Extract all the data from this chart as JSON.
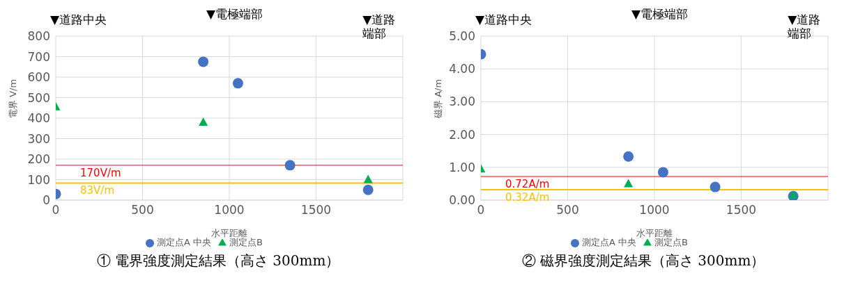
{
  "chart_data": [
    {
      "type": "scatter",
      "title": "① 電界強度測定結果（高さ 300mm）",
      "xlabel": "水平距離",
      "ylabel": "電界 V/m",
      "xlim": [
        0,
        2000
      ],
      "xticks": [
        0,
        500,
        1000,
        1500
      ],
      "ylim": [
        0,
        800
      ],
      "yticks": [
        0,
        100,
        200,
        300,
        400,
        500,
        600,
        700,
        800
      ],
      "series": [
        {
          "name": "測定点A 中央",
          "color": "#4472c4",
          "marker": "circle",
          "x": [
            0,
            850,
            1050,
            1350,
            1800
          ],
          "values": [
            30,
            675,
            570,
            170,
            50
          ]
        },
        {
          "name": "測定点B",
          "color": "#00b050",
          "marker": "triangle",
          "x": [
            0,
            850,
            1800
          ],
          "values": [
            455,
            380,
            100
          ]
        }
      ],
      "ref_lines": [
        {
          "axis": "y",
          "value": 170,
          "label": "170V/m",
          "color": "#ff0000"
        },
        {
          "axis": "y",
          "value": 83,
          "label": "83V/m",
          "color": "#ffc000"
        }
      ],
      "annotations": [
        "▼道路中央",
        "▼電極端部",
        "▼道路端部"
      ],
      "grid": true,
      "legend": "bottom"
    },
    {
      "type": "scatter",
      "title": "② 磁界強度測定結果（高さ 300mm）",
      "xlabel": "水平距離",
      "ylabel": "磁界 A/m",
      "xlim": [
        0,
        2000
      ],
      "xticks": [
        0,
        500,
        1000,
        1500
      ],
      "ylim": [
        0,
        5
      ],
      "yticks": [
        {
          "value": 0,
          "label": "0.00"
        },
        {
          "value": 1,
          "label": "1.00"
        },
        {
          "value": 2,
          "label": "2.00"
        },
        {
          "value": 3,
          "label": "3.00"
        },
        {
          "value": 4,
          "label": "4.00"
        },
        {
          "value": 5,
          "label": "5.00"
        }
      ],
      "series": [
        {
          "name": "測定点A 中央",
          "color": "#4472c4",
          "marker": "circle",
          "x": [
            0,
            850,
            1050,
            1350,
            1800
          ],
          "values": [
            4.45,
            1.33,
            0.85,
            0.4,
            0.12
          ]
        },
        {
          "name": "測定点B",
          "color": "#00b050",
          "marker": "triangle",
          "x": [
            0,
            850,
            1800
          ],
          "values": [
            0.95,
            0.5,
            0.15
          ]
        }
      ],
      "ref_lines": [
        {
          "axis": "y",
          "value": 0.72,
          "label": "0.72A/m",
          "color": "#ff0000"
        },
        {
          "axis": "y",
          "value": 0.32,
          "label": "0.32A/m",
          "color": "#ffc000"
        }
      ],
      "annotations": [
        "▼道路中央",
        "▼電極端部",
        "▼道路端部"
      ],
      "grid": true,
      "legend": "bottom"
    }
  ]
}
